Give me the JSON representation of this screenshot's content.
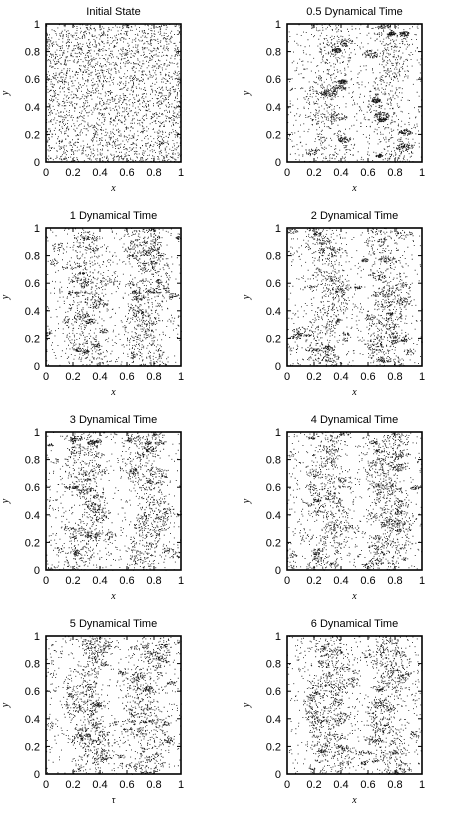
{
  "chart_data": [
    {
      "type": "scatter",
      "title": "Initial State",
      "xlabel": "x",
      "ylabel": "y",
      "xlim": [
        0,
        1
      ],
      "ylim": [
        0,
        1
      ],
      "xticks": [
        "0",
        "0.2",
        "0.4",
        "0.6",
        "0.8",
        "1"
      ],
      "yticks": [
        "0",
        "0.2",
        "0.4",
        "0.6",
        "0.8",
        "1"
      ],
      "grid": false,
      "distribution": "uniform"
    },
    {
      "type": "scatter",
      "title": "0.5 Dynamical Time",
      "xlabel": "x",
      "ylabel": "y",
      "xlim": [
        0,
        1
      ],
      "ylim": [
        0,
        1
      ],
      "xticks": [
        "0",
        "0.2",
        "0.4",
        "0.6",
        "0.8",
        "1"
      ],
      "yticks": [
        "0",
        "0.2",
        "0.4",
        "0.6",
        "0.8",
        "1"
      ],
      "grid": false,
      "distribution": "two vertical dense bands near x=0.3 and x=0.75"
    },
    {
      "type": "scatter",
      "title": "1 Dynamical Time",
      "xlabel": "x",
      "ylabel": "y",
      "xlim": [
        0,
        1
      ],
      "ylim": [
        0,
        1
      ],
      "xticks": [
        "0",
        "0.2",
        "0.4",
        "0.6",
        "0.8",
        "1"
      ],
      "yticks": [
        "0",
        "0.2",
        "0.4",
        "0.6",
        "0.8",
        "1"
      ],
      "grid": false,
      "distribution": "clumpy, bands near x=0.3 and x=0.75"
    },
    {
      "type": "scatter",
      "title": "2 Dynamical Time",
      "xlabel": "x",
      "ylabel": "y",
      "xlim": [
        0,
        1
      ],
      "ylim": [
        0,
        1
      ],
      "xticks": [
        "0",
        "0.2",
        "0.4",
        "0.6",
        "0.8",
        "1"
      ],
      "yticks": [
        "0",
        "0.2",
        "0.4",
        "0.6",
        "0.8",
        "1"
      ],
      "grid": false,
      "distribution": "clumpy, bands near x=0.3 and x=0.75"
    },
    {
      "type": "scatter",
      "title": "3 Dynamical Time",
      "xlabel": "x",
      "ylabel": "y",
      "xlim": [
        0,
        1
      ],
      "ylim": [
        0,
        1
      ],
      "xticks": [
        "0",
        "0.2",
        "0.4",
        "0.6",
        "0.8",
        "1"
      ],
      "yticks": [
        "0",
        "0.2",
        "0.4",
        "0.6",
        "0.8",
        "1"
      ],
      "grid": false,
      "distribution": "clumpy, bands near x=0.3 and x=0.75"
    },
    {
      "type": "scatter",
      "title": "4 Dynamical Time",
      "xlabel": "x",
      "ylabel": "y",
      "xlim": [
        0,
        1
      ],
      "ylim": [
        0,
        1
      ],
      "xticks": [
        "0",
        "0.2",
        "0.4",
        "0.6",
        "0.8",
        "1"
      ],
      "yticks": [
        "0",
        "0.2",
        "0.4",
        "0.6",
        "0.8",
        "1"
      ],
      "grid": false,
      "distribution": "clumpy, bands near x=0.3 and x=0.75"
    },
    {
      "type": "scatter",
      "title": "5 Dynamical Time",
      "xlabel": "τ",
      "ylabel": "y",
      "xlim": [
        0,
        1
      ],
      "ylim": [
        0,
        1
      ],
      "xticks": [
        "0",
        "0.2",
        "0.4",
        "0.6",
        "0.8",
        "1"
      ],
      "yticks": [
        "0",
        "0.2",
        "0.4",
        "0.6",
        "0.8",
        "1"
      ],
      "grid": false,
      "distribution": "clumpy, bands near x=0.3 and x=0.75"
    },
    {
      "type": "scatter",
      "title": "6 Dynamical Time",
      "xlabel": "x",
      "ylabel": "y",
      "xlim": [
        0,
        1
      ],
      "ylim": [
        0,
        1
      ],
      "xticks": [
        "0",
        "0.2",
        "0.4",
        "0.6",
        "0.8",
        "1"
      ],
      "yticks": [
        "0",
        "0.2",
        "0.4",
        "0.6",
        "0.8",
        "1"
      ],
      "grid": false,
      "distribution": "clumpy, bands near x=0.3 and x=0.75"
    }
  ]
}
